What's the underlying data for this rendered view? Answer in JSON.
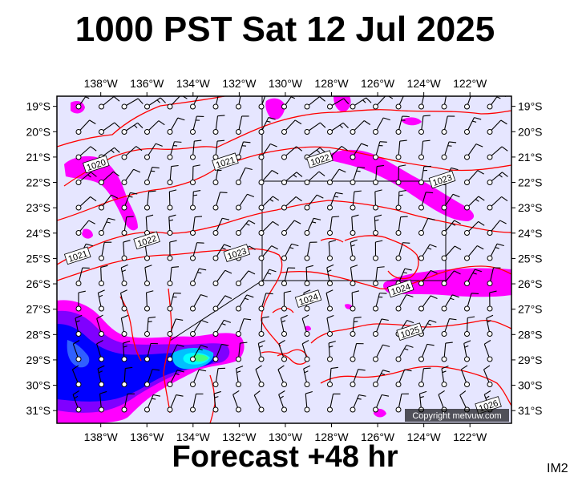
{
  "title": "1000 PST Sat 12 Jul 2025",
  "footer": "Forecast +48 hr",
  "panel_id": "IM2",
  "copyright": "Copyright metvuw.com",
  "colors": {
    "background": "#e6e6ff",
    "isobar": "#ff0000",
    "rain_light": "#ff00ff",
    "rain_moderate": "#8000ff",
    "rain_heavy": "#0000ff",
    "rain_intense": "#00ffff"
  },
  "map": {
    "lon_min": -139.9,
    "lon_max": -120.2,
    "lat_min": -31.5,
    "lat_max": -18.6,
    "lon_ticks": [
      {
        "value": -138,
        "label": "138°W"
      },
      {
        "value": -136,
        "label": "136°W"
      },
      {
        "value": -134,
        "label": "134°W"
      },
      {
        "value": -132,
        "label": "132°W"
      },
      {
        "value": -130,
        "label": "130°W"
      },
      {
        "value": -128,
        "label": "128°W"
      },
      {
        "value": -126,
        "label": "126°W"
      },
      {
        "value": -124,
        "label": "124°W"
      },
      {
        "value": -122,
        "label": "122°W"
      }
    ],
    "lat_ticks": [
      {
        "value": -19,
        "label": "19°S"
      },
      {
        "value": -20,
        "label": "20°S"
      },
      {
        "value": -21,
        "label": "21°S"
      },
      {
        "value": -22,
        "label": "22°S"
      },
      {
        "value": -23,
        "label": "23°S"
      },
      {
        "value": -24,
        "label": "24°S"
      },
      {
        "value": -25,
        "label": "25°S"
      },
      {
        "value": -26,
        "label": "26°S"
      },
      {
        "value": -27,
        "label": "27°S"
      },
      {
        "value": -28,
        "label": "28°S"
      },
      {
        "value": -29,
        "label": "29°S"
      },
      {
        "value": -30,
        "label": "30°S"
      },
      {
        "value": -31,
        "label": "31°S"
      }
    ],
    "isobar_labels": [
      {
        "text": "1020",
        "lon": -138.2,
        "lat": -21.3
      },
      {
        "text": "1021",
        "lon": -132.6,
        "lat": -21.2
      },
      {
        "text": "1022",
        "lon": -128.5,
        "lat": -21.1
      },
      {
        "text": "1023",
        "lon": -123.2,
        "lat": -21.9
      },
      {
        "text": "1021",
        "lon": -139.0,
        "lat": -24.9
      },
      {
        "text": "1022",
        "lon": -136.0,
        "lat": -24.3
      },
      {
        "text": "1023",
        "lon": -132.1,
        "lat": -24.8
      },
      {
        "text": "1024",
        "lon": -129.0,
        "lat": -26.6
      },
      {
        "text": "1024",
        "lon": -125.0,
        "lat": -26.2
      },
      {
        "text": "1025",
        "lon": -124.6,
        "lat": -27.9
      },
      {
        "text": "1026",
        "lon": -121.2,
        "lat": -30.8
      }
    ]
  }
}
